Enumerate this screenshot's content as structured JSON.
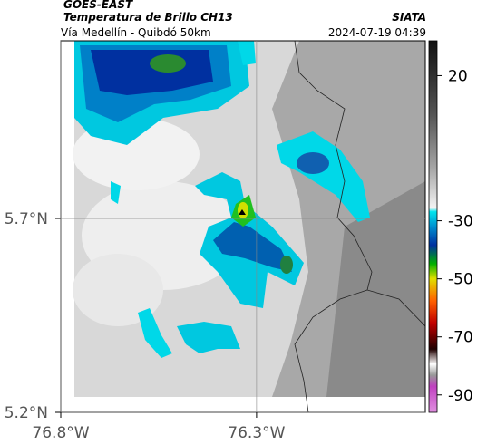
{
  "header": {
    "title": "GOES-EAST",
    "subtitle": "Temperatura de Brillo CH13",
    "source": "SIATA",
    "route": "Vía Medellín - Quibdó 50km",
    "datetime": "2024-07-19 04:39"
  },
  "map": {
    "latlim": [
      5.2,
      6.158
    ],
    "lonlim": [
      -76.8,
      -75.869
    ],
    "yticks": [
      {
        "value": 5.7,
        "label": "5.7°N"
      },
      {
        "value": 5.2,
        "label": "5.2°N"
      }
    ],
    "xticks": [
      {
        "value": -76.8,
        "label": "76.8°W"
      },
      {
        "value": -76.3,
        "label": "76.3°W"
      }
    ]
  },
  "colorbar": {
    "lim": [
      -96,
      32
    ],
    "ticks": [
      20,
      -30,
      -50,
      -70,
      -90
    ]
  }
}
